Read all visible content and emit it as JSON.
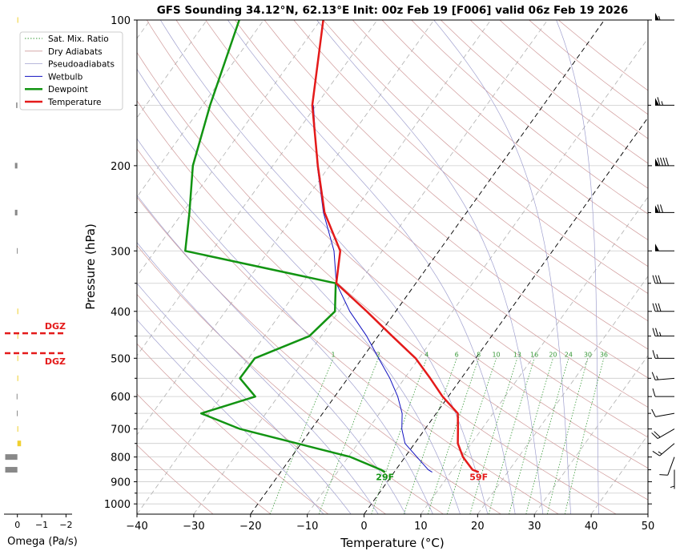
{
  "chart_data": {
    "type": "skewt",
    "title": "GFS Sounding 34.12°N, 62.13°E Init: 00z Feb 19 [F006] valid 06z Feb 19 2026",
    "xlabel": "Temperature (°C)",
    "ylabel": "Pressure (hPa)",
    "xlim": [
      -40,
      50
    ],
    "xticks": [
      {
        "value": -40,
        "label": "−40"
      },
      {
        "value": -30,
        "label": "−30"
      },
      {
        "value": -20,
        "label": "−20"
      },
      {
        "value": -10,
        "label": "−10"
      },
      0,
      10,
      20,
      30,
      40,
      50
    ],
    "ylim": [
      1050,
      100
    ],
    "log_y": true,
    "yticks": [
      100,
      200,
      300,
      400,
      500,
      600,
      700,
      800,
      900,
      1000
    ],
    "yticks_minor": [
      150,
      250,
      350,
      450,
      550,
      650,
      750,
      850,
      950
    ],
    "grid": true,
    "legend": "upper left",
    "pressure": [
      860,
      850,
      800,
      750,
      700,
      650,
      600,
      550,
      500,
      450,
      400,
      350,
      300,
      250,
      200,
      150,
      100
    ],
    "series": [
      {
        "name": "Wetbulb",
        "color": "#1010c0",
        "width": 1,
        "values": [
          6.7,
          5.7,
          2.1,
          -1.7,
          -4.1,
          -6.0,
          -8.9,
          -12.6,
          -17.1,
          -22.0,
          -28.1,
          -34.0,
          -38.5,
          -45.2,
          -52.2,
          -60.5,
          null
        ]
      },
      {
        "name": "Dewpoint",
        "color": "#129412",
        "width": 2.5,
        "values": [
          -1.6,
          -2.6,
          -9.6,
          -20.7,
          -32.6,
          -41.4,
          -34.0,
          -39.0,
          -38.9,
          -32.1,
          -30.7,
          -34.1,
          -64.7,
          -68.8,
          -74.1,
          -78.7,
          -84.3
        ]
      },
      {
        "name": "Temperature",
        "color": "#e41a1a",
        "width": 2.5,
        "values": [
          14.9,
          13.5,
          10.2,
          7.6,
          5.8,
          3.8,
          -1.0,
          -5.5,
          -10.6,
          -17.5,
          -25.1,
          -34.0,
          -37.4,
          -45.0,
          -52.1,
          -60.7,
          -69.5
        ]
      }
    ],
    "annotations": [
      {
        "text": "29F",
        "series": 1
      },
      {
        "text": "59F",
        "series": 2
      }
    ],
    "reference_lines": [
      {
        "name": "Sat. Mix. Ratio",
        "color": "#3a9a3a",
        "style": "dotted",
        "top": 500,
        "values": [
          1,
          2,
          4,
          6,
          8,
          10,
          13,
          16,
          20,
          24,
          30,
          36
        ]
      },
      {
        "name": "Dry Adiabats",
        "color": "#d09a9a",
        "style": "solid"
      },
      {
        "name": "Pseudoadiabats",
        "color": "#a0a0cf",
        "style": "solid"
      }
    ],
    "isotherm_lines": [
      -20,
      0
    ],
    "dgz": {
      "label": "DGZ",
      "pressures": [
        444,
        488
      ],
      "color": "#e41a1a"
    },
    "wind": {
      "pressure": [
        100,
        150,
        200,
        250,
        300,
        350,
        400,
        450,
        500,
        550,
        600,
        650,
        700,
        750,
        800,
        850
      ],
      "speed": [
        55,
        65,
        90,
        70,
        50,
        30,
        30,
        25,
        15,
        15,
        10,
        10,
        20,
        15,
        10,
        5
      ],
      "direction": [
        270,
        270,
        270,
        270,
        270,
        270,
        270,
        270,
        270,
        265,
        270,
        260,
        240,
        230,
        200,
        180
      ]
    },
    "omega": {
      "xlabel": "Omega (Pa/s)",
      "xlim": [
        0.55,
        -2.25
      ],
      "xticks": [
        0,
        {
          "value": -1,
          "label": "−1"
        },
        {
          "value": -2,
          "label": "−2"
        }
      ],
      "pressure": [
        100,
        150,
        200,
        250,
        300,
        400,
        450,
        500,
        550,
        600,
        650,
        700,
        750,
        800,
        850
      ],
      "values": [
        -0.02,
        0.05,
        0.1,
        0.1,
        0.02,
        -0.02,
        -0.02,
        -0.02,
        -0.02,
        0.03,
        0.02,
        -0.02,
        -0.15,
        0.5,
        0.5
      ],
      "colors": {
        "positive": "#888888",
        "negative": "#f0d030"
      }
    }
  }
}
